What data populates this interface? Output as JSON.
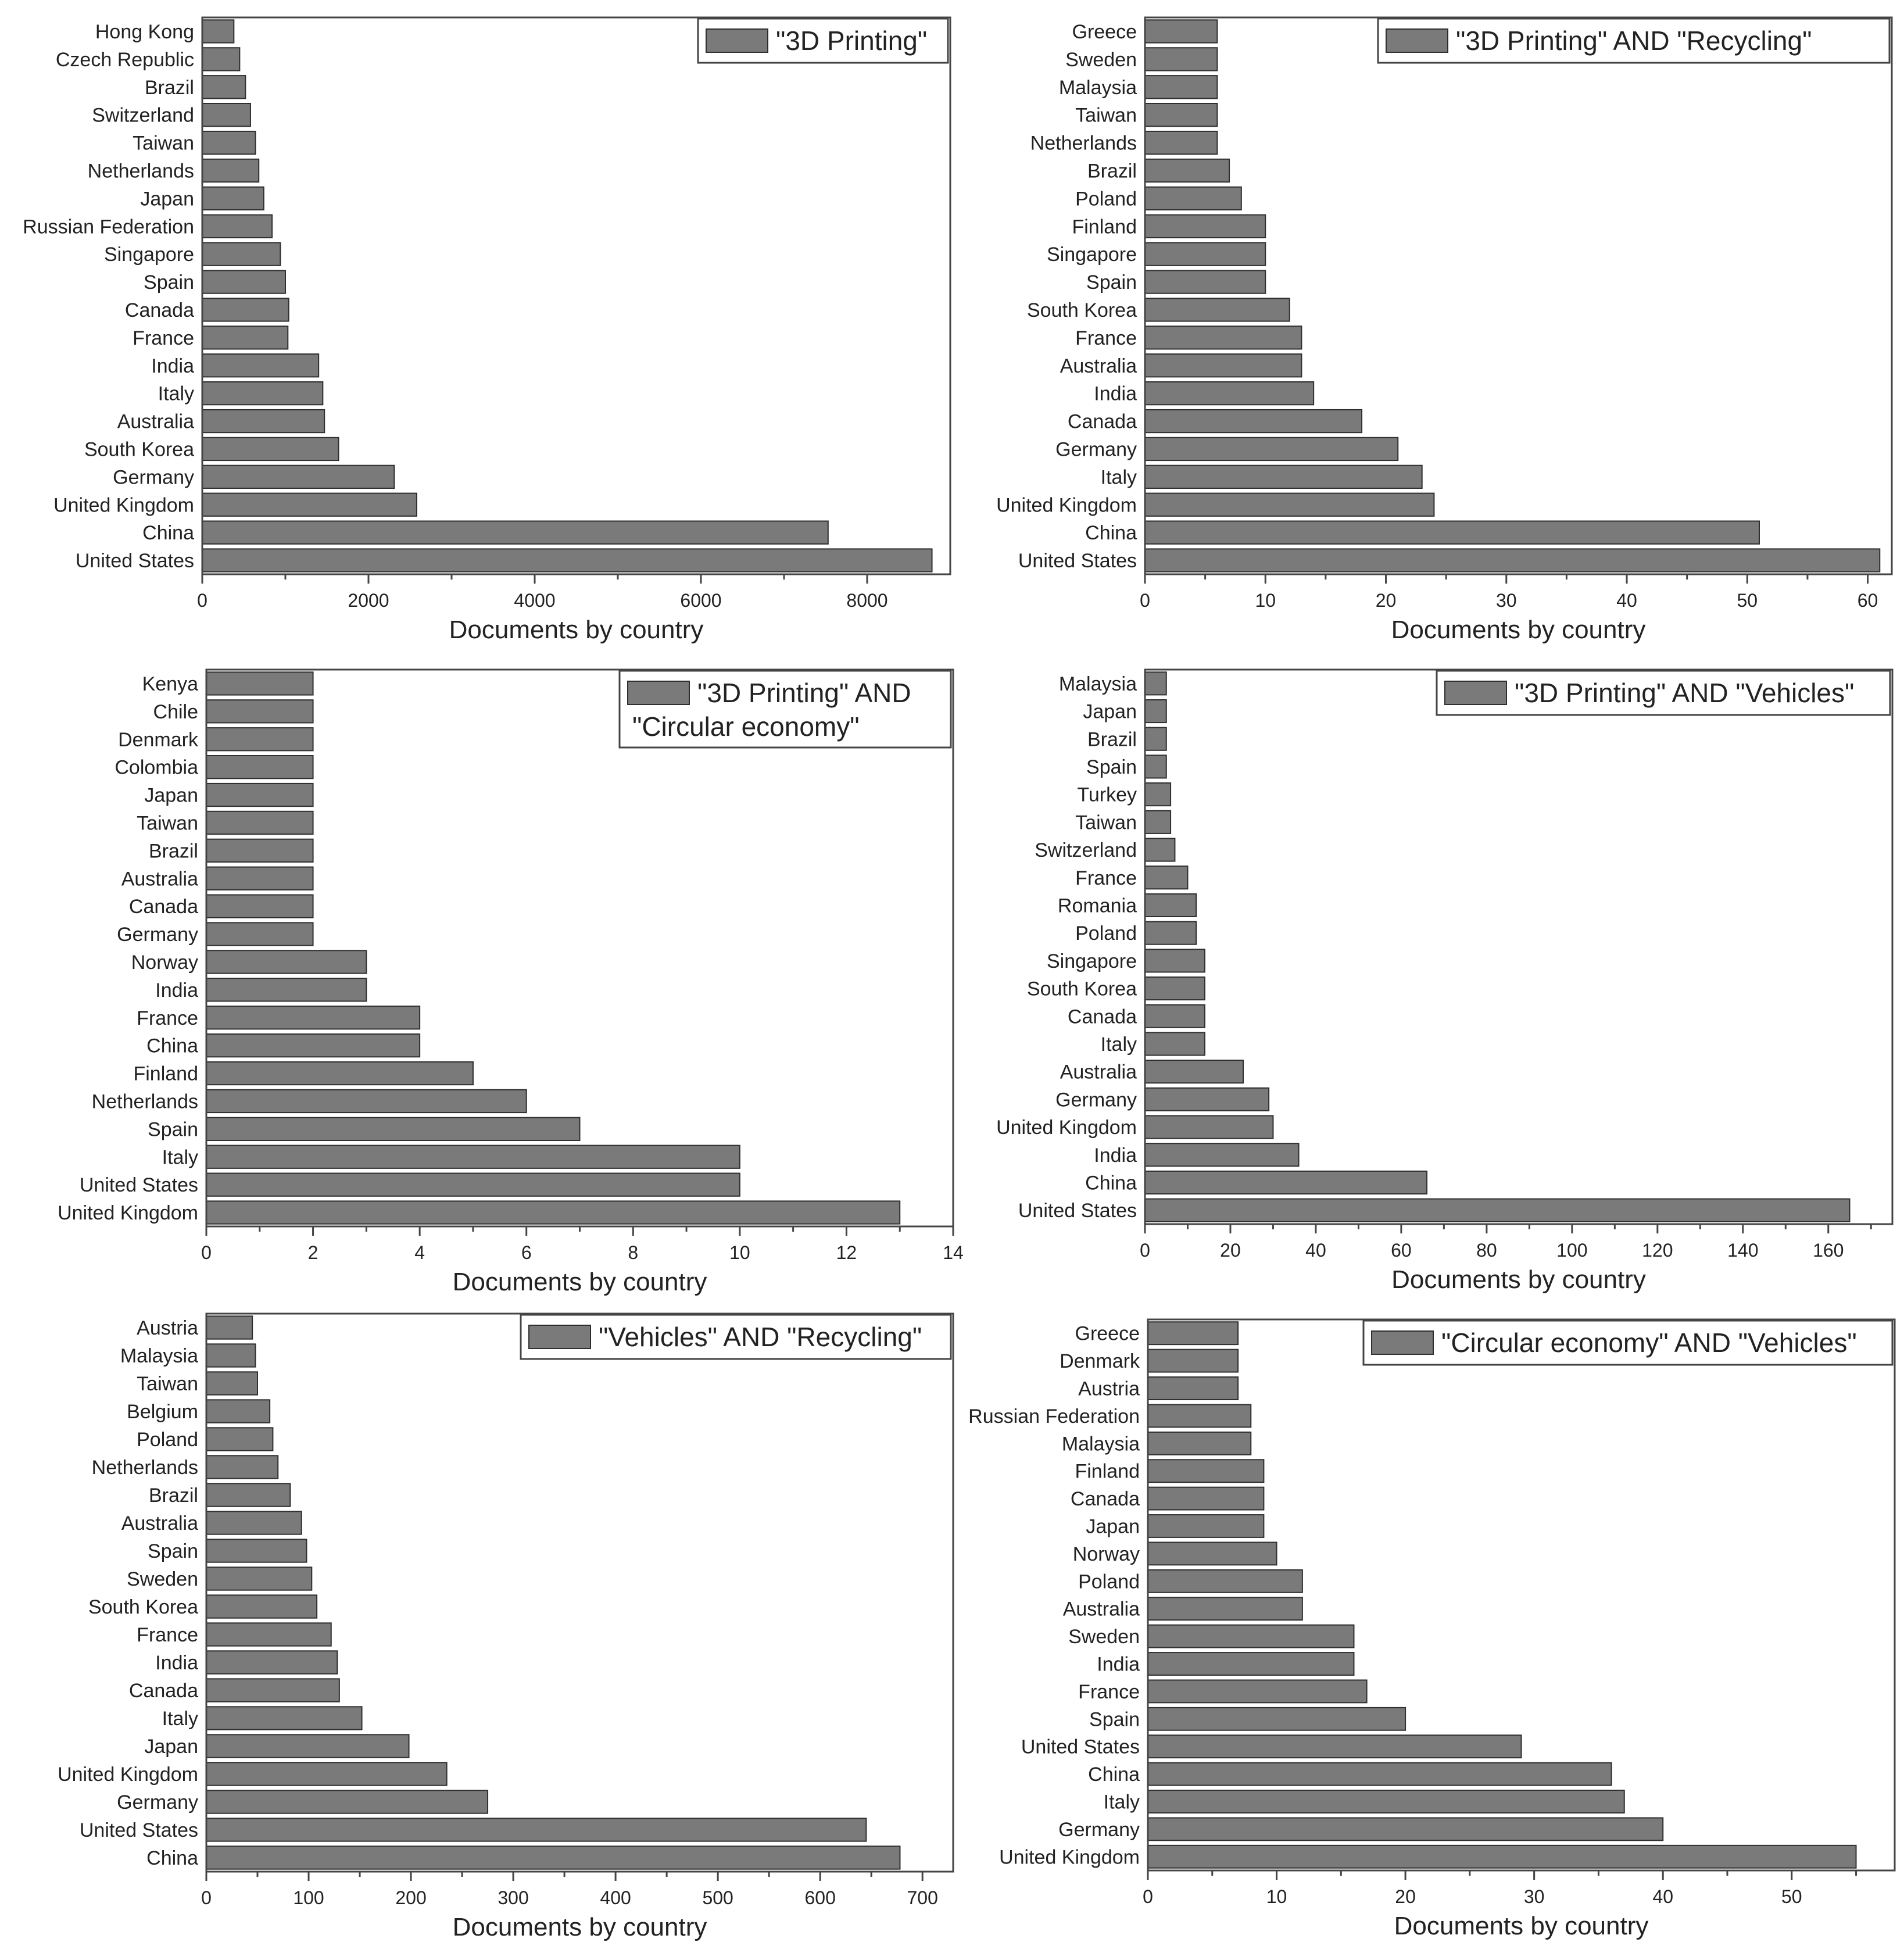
{
  "colors": {
    "bar": "#7a7a7a",
    "bar_edge": "#2f2f2f",
    "axis": "#444444",
    "text": "#222222"
  },
  "chart_data": [
    {
      "type": "bar",
      "orientation": "horizontal",
      "legend": [
        "\"3D Printing\""
      ],
      "legend_position": "top-right",
      "xlabel": "Documents by country",
      "xlim": [
        0,
        9000
      ],
      "xticks": [
        0,
        2000,
        4000,
        6000,
        8000
      ],
      "categories": [
        "Hong Kong",
        "Czech Republic",
        "Brazil",
        "Switzerland",
        "Taiwan",
        "Netherlands",
        "Japan",
        "Russian Federation",
        "Singapore",
        "Spain",
        "Canada",
        "France",
        "India",
        "Italy",
        "Australia",
        "South Korea",
        "Germany",
        "United Kingdom",
        "China",
        "United States"
      ],
      "values": [
        380,
        450,
        520,
        580,
        640,
        680,
        740,
        840,
        940,
        1000,
        1040,
        1030,
        1400,
        1450,
        1470,
        1640,
        2310,
        2580,
        7530,
        8780
      ]
    },
    {
      "type": "bar",
      "orientation": "horizontal",
      "legend": [
        "\"3D Printing\" AND \"Recycling\""
      ],
      "legend_position": "top-right",
      "xlabel": "Documents by country",
      "xlim": [
        0,
        62
      ],
      "xticks": [
        0,
        10,
        20,
        30,
        40,
        50,
        60
      ],
      "categories": [
        "Greece",
        "Sweden",
        "Malaysia",
        "Taiwan",
        "Netherlands",
        "Brazil",
        "Poland",
        "Finland",
        "Singapore",
        "Spain",
        "South Korea",
        "France",
        "Australia",
        "India",
        "Canada",
        "Germany",
        "Italy",
        "United Kingdom",
        "China",
        "United States"
      ],
      "values": [
        6,
        6,
        6,
        6,
        6,
        7,
        8,
        10,
        10,
        10,
        12,
        13,
        13,
        14,
        18,
        21,
        23,
        24,
        51,
        61
      ]
    },
    {
      "type": "bar",
      "orientation": "horizontal",
      "legend": [
        "\"3D Printing\" AND",
        "\"Circular economy\""
      ],
      "legend_position": "top-right",
      "xlabel": "Documents by country",
      "xlim": [
        0,
        14
      ],
      "xticks": [
        0,
        2,
        4,
        6,
        8,
        10,
        12,
        14
      ],
      "categories": [
        "Kenya",
        "Chile",
        "Denmark",
        "Colombia",
        "Japan",
        "Taiwan",
        "Brazil",
        "Australia",
        "Canada",
        "Germany",
        "Norway",
        "India",
        "France",
        "China",
        "Finland",
        "Netherlands",
        "Spain",
        "Italy",
        "United States",
        "United Kingdom"
      ],
      "values": [
        2,
        2,
        2,
        2,
        2,
        2,
        2,
        2,
        2,
        2,
        3,
        3,
        4,
        4,
        5,
        6,
        7,
        10,
        10,
        13
      ]
    },
    {
      "type": "bar",
      "orientation": "horizontal",
      "legend": [
        "\"3D Printing\" AND \"Vehicles\""
      ],
      "legend_position": "top-right",
      "xlabel": "Documents by country",
      "xlim": [
        0,
        175
      ],
      "xticks": [
        0,
        20,
        40,
        60,
        80,
        100,
        120,
        140,
        160
      ],
      "categories": [
        "Malaysia",
        "Japan",
        "Brazil",
        "Spain",
        "Turkey",
        "Taiwan",
        "Switzerland",
        "France",
        "Romania",
        "Poland",
        "Singapore",
        "South Korea",
        "Canada",
        "Italy",
        "Australia",
        "Germany",
        "United Kingdom",
        "India",
        "China",
        "United States"
      ],
      "values": [
        5,
        5,
        5,
        5,
        6,
        6,
        7,
        10,
        12,
        12,
        14,
        14,
        14,
        14,
        23,
        29,
        30,
        36,
        66,
        165
      ]
    },
    {
      "type": "bar",
      "orientation": "horizontal",
      "legend": [
        "\"Vehicles\" AND \"Recycling\""
      ],
      "legend_position": "top-right",
      "xlabel": "Documents by country",
      "xlim": [
        0,
        730
      ],
      "xticks": [
        0,
        100,
        200,
        300,
        400,
        500,
        600,
        700
      ],
      "categories": [
        "Austria",
        "Malaysia",
        "Taiwan",
        "Belgium",
        "Poland",
        "Netherlands",
        "Brazil",
        "Australia",
        "Spain",
        "Sweden",
        "South Korea",
        "France",
        "India",
        "Canada",
        "Italy",
        "Japan",
        "United Kingdom",
        "Germany",
        "United States",
        "China"
      ],
      "values": [
        45,
        48,
        50,
        62,
        65,
        70,
        82,
        93,
        98,
        103,
        108,
        122,
        128,
        130,
        152,
        198,
        235,
        275,
        645,
        678
      ]
    },
    {
      "type": "bar",
      "orientation": "horizontal",
      "legend": [
        "\"Circular economy\" AND \"Vehicles\""
      ],
      "legend_position": "top-right",
      "xlabel": "Documents by country",
      "xlim": [
        0,
        58
      ],
      "xticks": [
        0,
        10,
        20,
        30,
        40,
        50
      ],
      "categories": [
        "Greece",
        "Denmark",
        "Austria",
        "Russian Federation",
        "Malaysia",
        "Finland",
        "Canada",
        "Japan",
        "Norway",
        "Poland",
        "Australia",
        "Sweden",
        "India",
        "France",
        "Spain",
        "United States",
        "China",
        "Italy",
        "Germany",
        "United Kingdom"
      ],
      "values": [
        7,
        7,
        7,
        8,
        8,
        9,
        9,
        9,
        10,
        12,
        12,
        16,
        16,
        17,
        20,
        29,
        36,
        37,
        40,
        55
      ]
    }
  ]
}
